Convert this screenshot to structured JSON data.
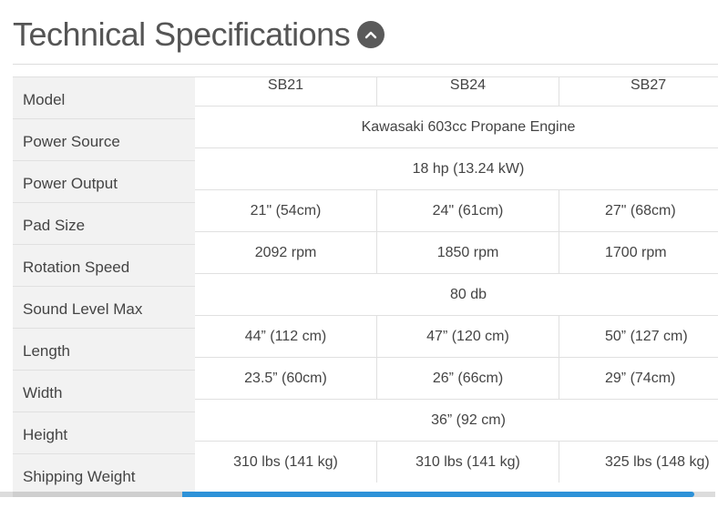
{
  "heading": {
    "title": "Technical Specifications"
  },
  "columns": [
    "SB21",
    "SB24",
    "SB27"
  ],
  "rows": [
    {
      "label": "Model"
    },
    {
      "label": "Power Source",
      "merged": "Kawasaki 603cc Propane Engine"
    },
    {
      "label": "Power Output",
      "merged": "18 hp (13.24 kW)"
    },
    {
      "label": "Pad Size",
      "values": [
        "21\" (54cm)",
        "24\" (61cm)",
        "27\" (68cm)"
      ]
    },
    {
      "label": "Rotation Speed",
      "values": [
        "2092 rpm",
        "1850 rpm",
        "1700 rpm"
      ]
    },
    {
      "label": "Sound Level Max",
      "merged": "80 db"
    },
    {
      "label": "Length",
      "values": [
        "44” (112 cm)",
        "47” (120 cm)",
        "50” (127 cm)"
      ]
    },
    {
      "label": "Width",
      "values": [
        "23.5” (60cm)",
        "26” (66cm)",
        "29” (74cm)"
      ]
    },
    {
      "label": "Height",
      "merged": "36” (92 cm)"
    },
    {
      "label": "Shipping Weight",
      "values": [
        "310 lbs (141 kg)",
        "310 lbs (141 kg)",
        "325 lbs (148 kg)"
      ]
    }
  ],
  "icons": {
    "toggle": "chevron-up-icon"
  },
  "colors": {
    "accent": "#2e92d8",
    "label_bg": "#f2f2f2",
    "toggle_bg": "#5a5a5a"
  }
}
